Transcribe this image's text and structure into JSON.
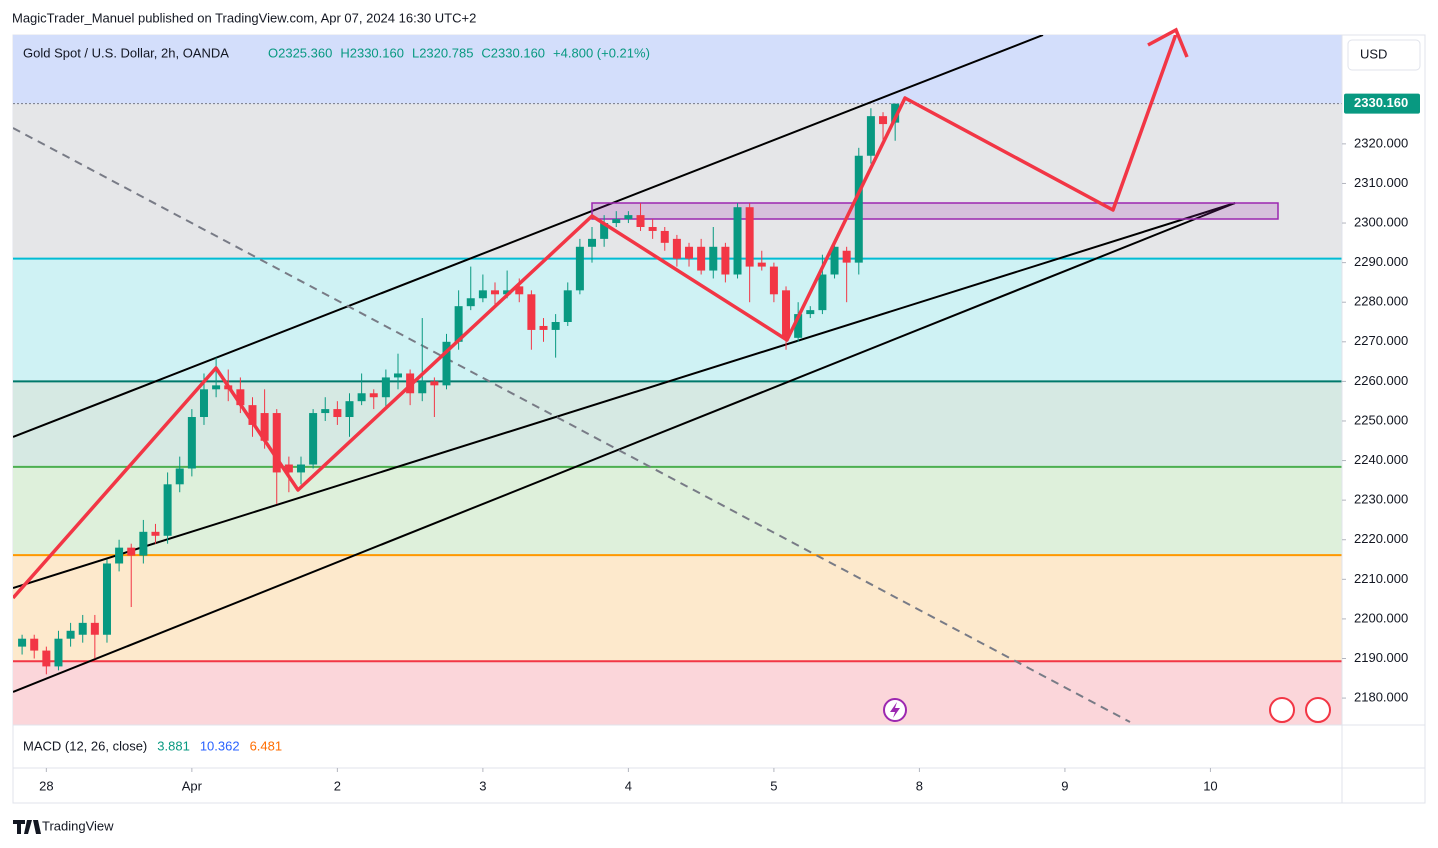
{
  "header": "MagicTrader_Manuel published on TradingView.com, Apr 07, 2024 16:30 UTC+2",
  "chart_data": {
    "type": "candlestick",
    "symbol": "Gold Spot / U.S. Dollar, 2h, OANDA",
    "ohlc_legend": [
      "O2325.360",
      "H2330.160",
      "L2320.785",
      "C2330.160"
    ],
    "change": "+4.800 (+0.21%)",
    "currency": "USD",
    "up_color": "#089981",
    "down_color": "#f23645",
    "open": [
      2193,
      2195,
      2192,
      2188,
      2195,
      2196,
      2199,
      2196,
      2214,
      2218,
      2216,
      2222,
      2221,
      2234,
      2238,
      2251,
      2258,
      2259,
      2258,
      2254,
      2252,
      2252,
      2239,
      2237,
      2239,
      2252,
      2253,
      2251,
      2255,
      2257,
      2256,
      2261,
      2262,
      2257,
      2260,
      2259,
      2270,
      2279,
      2281,
      2283,
      2282,
      2284,
      2282,
      2274,
      2273,
      2275,
      2283,
      2294,
      2296,
      2300,
      2301,
      2302,
      2299,
      2298,
      2296,
      2294,
      2294,
      2288,
      2294,
      2287,
      2304,
      2290,
      2289,
      2283,
      2271,
      2277,
      2278,
      2287,
      2293,
      2290,
      2317,
      2327,
      2325.36
    ],
    "high": [
      2196,
      2196,
      2193,
      2197,
      2199,
      2201,
      2201,
      2215,
      2220,
      2219,
      2225,
      2224,
      2237,
      2241,
      2253,
      2262,
      2266,
      2263,
      2261,
      2256,
      2258,
      2253,
      2241,
      2241,
      2253,
      2256,
      2255,
      2257,
      2262,
      2258,
      2263,
      2267,
      2263,
      2276,
      2261,
      2272,
      2283,
      2289,
      2287,
      2285,
      2288,
      2286,
      2283,
      2276,
      2277,
      2285,
      2296,
      2299,
      2302,
      2303,
      2303,
      2305,
      2301,
      2299,
      2297,
      2295,
      2296,
      2299,
      2295,
      2305,
      2305,
      2293,
      2290,
      2284,
      2280,
      2279,
      2292,
      2295,
      2294,
      2319,
      2329,
      2328,
      2330.16
    ],
    "low": [
      2191,
      2190,
      2186,
      2187,
      2193,
      2194,
      2190,
      2194,
      2212,
      2203,
      2214,
      2219,
      2219,
      2232,
      2236,
      2249,
      2256,
      2255,
      2252,
      2246,
      2243,
      2229,
      2232,
      2234,
      2238,
      2250,
      2249,
      2246,
      2254,
      2253,
      2253,
      2258,
      2254,
      2255,
      2251,
      2258,
      2268,
      2278,
      2280,
      2279,
      2281,
      2280,
      2268,
      2270,
      2266,
      2274,
      2282,
      2290,
      2294,
      2299,
      2300,
      2298,
      2296,
      2293,
      2289,
      2289,
      2287,
      2286,
      2285,
      2286,
      2280,
      2288,
      2280,
      2268,
      2270,
      2276,
      2277,
      2286,
      2280,
      2287,
      2315,
      2321,
      2320.785
    ],
    "close": [
      2195,
      2192,
      2188,
      2195,
      2197,
      2199,
      2196,
      2214,
      2218,
      2216,
      2222,
      2221,
      2234,
      2238,
      2251,
      2258,
      2259,
      2258,
      2254,
      2249,
      2245,
      2237,
      2237,
      2239,
      2252,
      2253,
      2251,
      2255,
      2257,
      2256,
      2261,
      2262,
      2257,
      2260,
      2259,
      2270,
      2279,
      2281,
      2283,
      2282,
      2283,
      2282,
      2273,
      2273,
      2275,
      2283,
      2294,
      2296,
      2300,
      2301,
      2302,
      2299,
      2298,
      2295,
      2291,
      2291,
      2288,
      2294,
      2287,
      2304,
      2289,
      2289,
      2282,
      2271,
      2277,
      2278,
      2287,
      2294,
      2290,
      2317,
      2327,
      2325,
      2330.16
    ],
    "xlim": [
      -0.75,
      108.85
    ],
    "xticks": [
      {
        "value": 2,
        "label": "28"
      },
      {
        "value": 14,
        "label": "Apr"
      },
      {
        "value": 26,
        "label": "2"
      },
      {
        "value": 38,
        "label": "3"
      },
      {
        "value": 50,
        "label": "4"
      },
      {
        "value": 62,
        "label": "5"
      },
      {
        "value": 74,
        "label": "8"
      },
      {
        "value": 86,
        "label": "9"
      },
      {
        "value": 98,
        "label": "10"
      }
    ],
    "ylim": [
      2173.2,
      2347.5
    ],
    "yticks": [
      {
        "value": 2180,
        "label": "2180.000"
      },
      {
        "value": 2190,
        "label": "2190.000"
      },
      {
        "value": 2200,
        "label": "2200.000"
      },
      {
        "value": 2210,
        "label": "2210.000"
      },
      {
        "value": 2220,
        "label": "2220.000"
      },
      {
        "value": 2230,
        "label": "2230.000"
      },
      {
        "value": 2240,
        "label": "2240.000"
      },
      {
        "value": 2250,
        "label": "2250.000"
      },
      {
        "value": 2260,
        "label": "2260.000"
      },
      {
        "value": 2270,
        "label": "2270.000"
      },
      {
        "value": 2280,
        "label": "2280.000"
      },
      {
        "value": 2290,
        "label": "2290.000"
      },
      {
        "value": 2300,
        "label": "2300.000"
      },
      {
        "value": 2310,
        "label": "2310.000"
      },
      {
        "value": 2320,
        "label": "2320.000"
      }
    ],
    "grid": false,
    "price_line": {
      "value": 2330.16,
      "label": "2330.160"
    },
    "levels": [
      {
        "value": 2330.16,
        "color": "#787b86"
      },
      {
        "value": 2291,
        "color": "#00bcd4"
      },
      {
        "value": 2260,
        "color": "#00796b"
      },
      {
        "value": 2238.4,
        "color": "#4caf50"
      },
      {
        "value": 2216.1,
        "color": "#ff9800"
      },
      {
        "value": 2189.3,
        "color": "#f23645"
      }
    ],
    "band_colors": [
      "#d3defb",
      "#e5e6e8",
      "#cff2f4",
      "#d6e9e3",
      "#def0db",
      "#fde9cc",
      "#fbd6da"
    ],
    "macd": {
      "label": "MACD (12, 26, close)",
      "values": [
        "3.881",
        "10.362",
        "6.481"
      ],
      "colors": [
        "#089981",
        "#2962ff",
        "#ff6d00"
      ]
    }
  },
  "footer": "TradingView"
}
